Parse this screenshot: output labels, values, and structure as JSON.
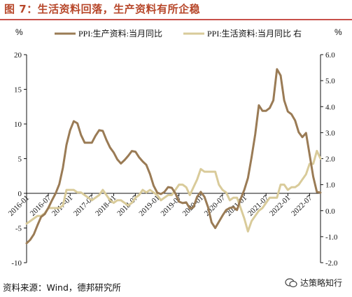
{
  "header": {
    "title": "图 7：生活资料回落，生产资料有所企稳"
  },
  "footer": {
    "source": "资料来源：Wind，德邦研究所",
    "watermark": "达策略知行"
  },
  "colors": {
    "ppi_producer": "#9a7b55",
    "ppi_consumer": "#d9cb9a",
    "title": "#b7472a",
    "axis": "#111111",
    "rule": "#c8504a"
  },
  "chart_data": {
    "type": "line",
    "left_unit": "%",
    "right_unit": "%",
    "legend_placement": "top",
    "grid": false,
    "left_axis": {
      "ylim": [
        -10,
        20
      ],
      "ticks": [
        "-10",
        "-5",
        "0",
        "5",
        "10",
        "15",
        "20"
      ]
    },
    "right_axis": {
      "ylim": [
        -2.0,
        6.0
      ],
      "ticks": [
        "-2.0",
        "-1.0",
        "0.0",
        "1.0",
        "2.0",
        "3.0",
        "4.0",
        "5.0",
        "6.0"
      ]
    },
    "x_tick_labels": [
      "2016-01",
      "2016-07",
      "2017-01",
      "2017-07",
      "2018-01",
      "2018-07",
      "2019-01",
      "2019-07",
      "2020-01",
      "2020-07",
      "2021-01",
      "2021-07",
      "2022-01",
      "2022-07"
    ],
    "x": [
      "2016-01",
      "2016-02",
      "2016-03",
      "2016-04",
      "2016-05",
      "2016-06",
      "2016-07",
      "2016-08",
      "2016-09",
      "2016-10",
      "2016-11",
      "2016-12",
      "2017-01",
      "2017-02",
      "2017-03",
      "2017-04",
      "2017-05",
      "2017-06",
      "2017-07",
      "2017-08",
      "2017-09",
      "2017-10",
      "2017-11",
      "2017-12",
      "2018-01",
      "2018-02",
      "2018-03",
      "2018-04",
      "2018-05",
      "2018-06",
      "2018-07",
      "2018-08",
      "2018-09",
      "2018-10",
      "2018-11",
      "2018-12",
      "2019-01",
      "2019-02",
      "2019-03",
      "2019-04",
      "2019-05",
      "2019-06",
      "2019-07",
      "2019-08",
      "2019-09",
      "2019-10",
      "2019-11",
      "2019-12",
      "2020-01",
      "2020-02",
      "2020-03",
      "2020-04",
      "2020-05",
      "2020-06",
      "2020-07",
      "2020-08",
      "2020-09",
      "2020-10",
      "2020-11",
      "2020-12",
      "2021-01",
      "2021-02",
      "2021-03",
      "2021-04",
      "2021-05",
      "2021-06",
      "2021-07",
      "2021-08",
      "2021-09",
      "2021-10",
      "2021-11",
      "2021-12",
      "2022-01",
      "2022-02",
      "2022-03",
      "2022-04",
      "2022-05",
      "2022-06",
      "2022-07",
      "2022-08",
      "2022-09",
      "2022-10"
    ],
    "series": [
      {
        "name": "PPI:生产资料:当月同比",
        "axis": "left",
        "values": [
          -7.2,
          -6.7,
          -5.9,
          -4.6,
          -3.4,
          -3.0,
          -2.1,
          -1.0,
          0.0,
          1.3,
          3.7,
          7.0,
          9.1,
          10.4,
          10.1,
          8.4,
          7.3,
          7.3,
          7.3,
          8.3,
          9.1,
          9.0,
          7.7,
          6.6,
          5.9,
          4.9,
          4.3,
          4.8,
          5.4,
          6.1,
          6.0,
          5.2,
          4.6,
          4.1,
          2.8,
          1.1,
          0.1,
          -0.1,
          0.2,
          0.9,
          0.8,
          0.0,
          -1.2,
          -1.4,
          -1.3,
          -2.2,
          -2.0,
          -0.5,
          0.2,
          -0.5,
          -2.0,
          -4.2,
          -5.0,
          -4.1,
          -3.2,
          -2.4,
          -2.1,
          -2.0,
          -2.4,
          -0.8,
          0.5,
          2.2,
          5.2,
          8.5,
          12.7,
          11.9,
          11.9,
          12.3,
          13.4,
          17.9,
          17.0,
          13.4,
          11.8,
          11.4,
          10.5,
          8.8,
          8.1,
          8.7,
          5.6,
          2.4,
          0.2,
          0.1
        ]
      },
      {
        "name": "PPI:生活资料:当月同比 右",
        "axis": "right",
        "values": [
          -0.5,
          -0.4,
          -0.3,
          -0.2,
          -0.2,
          -0.1,
          0.1,
          0.1,
          0.1,
          0.1,
          0.2,
          0.8,
          0.8,
          0.8,
          0.7,
          0.7,
          0.6,
          0.5,
          0.4,
          0.5,
          0.6,
          0.8,
          0.6,
          0.4,
          0.3,
          0.4,
          0.4,
          0.3,
          0.2,
          0.3,
          0.5,
          0.6,
          0.8,
          0.7,
          0.8,
          0.7,
          0.6,
          0.4,
          0.5,
          0.6,
          0.6,
          0.8,
          1.0,
          1.0,
          0.9,
          0.6,
          0.9,
          1.2,
          1.6,
          1.5,
          1.5,
          1.5,
          1.5,
          1.0,
          0.8,
          0.7,
          0.4,
          0.5,
          0.5,
          0.1,
          -0.3,
          -0.8,
          -0.4,
          -0.2,
          0.0,
          0.1,
          0.3,
          0.5,
          0.5,
          0.5,
          1.0,
          1.0,
          0.8,
          0.9,
          0.9,
          1.0,
          1.2,
          1.4,
          1.8,
          1.8,
          2.3,
          2.0
        ]
      }
    ]
  }
}
